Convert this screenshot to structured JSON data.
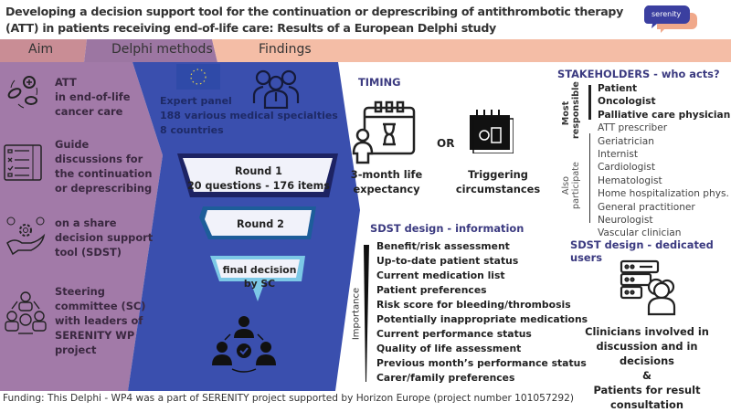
{
  "title": {
    "line1": "Developing a decision support tool for the continuation or deprescribing of antithrombotic therapy",
    "line2": "(ATT) in patients receiving end-of-life care: Results of a European Delphi study"
  },
  "logo": {
    "text": "serenity",
    "colors": [
      "#3b3fa0",
      "#f0a88a"
    ]
  },
  "colors": {
    "aim": "#a27aa8",
    "aim_header": "#c98d95",
    "delphi": "#3a4fae",
    "delphi_header": "#9c76a2",
    "findings_header": "#f4bda6",
    "accent_navy": "#3b3a80"
  },
  "headers": {
    "aim": "Aim",
    "delphi": "Delphi methods",
    "findings": "Findings"
  },
  "aim": {
    "items": [
      {
        "icon": "pills-cycle-icon",
        "lines": [
          "ATT",
          "in end-of-life",
          "cancer care"
        ]
      },
      {
        "icon": "checklist-icon",
        "lines": [
          "Guide",
          "discussions for",
          "the continuation",
          "or deprescribing"
        ]
      },
      {
        "icon": "hand-gear-icon",
        "lines": [
          "on a share",
          "decision support",
          "tool (SDST)"
        ]
      },
      {
        "icon": "committee-icon",
        "lines": [
          "Steering",
          "committee (SC)",
          "with leaders of",
          "SERENITY WP",
          "project"
        ]
      }
    ]
  },
  "delphi": {
    "expert_panel": [
      "Expert panel",
      "188 various medical specialties",
      "8 countries"
    ],
    "round1": [
      "Round 1",
      "20 questions - 176 items"
    ],
    "round2": "Round 2",
    "final": [
      "final decision",
      "by SC"
    ]
  },
  "findings": {
    "timing": {
      "heading": "TIMING",
      "option1": [
        "3-month life",
        "expectancy"
      ],
      "or": "OR",
      "option2": [
        "Triggering",
        "circumstances"
      ]
    },
    "stakeholders": {
      "heading": "STAKEHOLDERS - who acts?",
      "most_label": [
        "Most",
        "responsible"
      ],
      "most": [
        "Patient",
        "Oncologist",
        "Palliative care physician"
      ],
      "also_label": [
        "Also",
        "participate"
      ],
      "also": [
        "ATT prescriber",
        "Geriatrician",
        "Internist",
        "Cardiologist",
        "Hematologist",
        "Home hospitalization phys.",
        "General practitioner",
        "Neurologist",
        "Vascular clinician"
      ]
    },
    "info": {
      "heading": "SDST design - information",
      "axis_label": "Importance",
      "items": [
        "Benefit/risk assessment",
        "Up-to-date patient status",
        "Current medication list",
        "Patient preferences",
        "Risk score for bleeding/thrombosis",
        "Potentially inappropriate medications",
        "Current performance status",
        "Quality of life assessment",
        "Previous month’s performance status",
        "Carer/family preferences"
      ]
    },
    "users": {
      "heading": "SDST design - dedicated users",
      "lines": [
        "Clinicians involved in",
        "discussion and in decisions",
        "&",
        "Patients for result",
        "consultation"
      ]
    }
  },
  "footer": "Funding: This Delphi - WP4 was a part of SERENITY project supported by Horizon Europe (project number 101057292)"
}
